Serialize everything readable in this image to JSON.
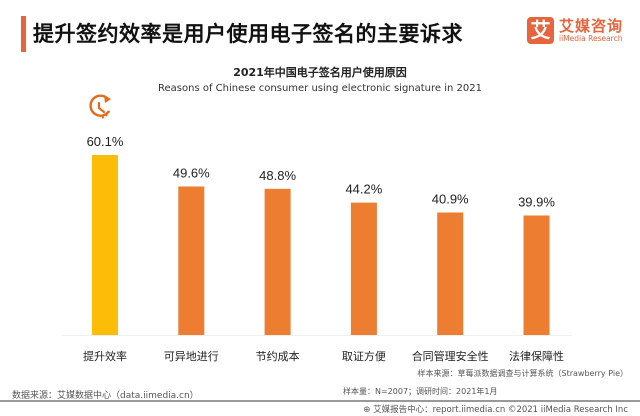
{
  "header": {
    "title": "提升签约效率是用户使用电子签名的主要诉求",
    "logo_mark": "艾",
    "logo_cn": "艾媒咨询",
    "logo_en": "iiMedia Research"
  },
  "chart_data": {
    "type": "bar",
    "title": "2021年中国电子签名用户使用原因",
    "subtitle": "Reasons of Chinese consumer using electronic signature in 2021",
    "categories": [
      "提升效率",
      "可异地进行",
      "节约成本",
      "取证方便",
      "合同管理安全性",
      "法律保障性"
    ],
    "values": [
      60.1,
      49.6,
      48.8,
      44.2,
      40.9,
      39.9
    ],
    "labels": [
      "60.1%",
      "49.6%",
      "48.8%",
      "44.2%",
      "40.9%",
      "39.9%"
    ],
    "unit": "%",
    "xlabel": "",
    "ylabel": "",
    "ylim": [
      0,
      60.1
    ],
    "grid": false,
    "legend": "none",
    "highlight_index": 0,
    "highlight_icon": "clock-icon",
    "colors": {
      "highlight": "#fbbd08",
      "default": "#ed7d31",
      "icon": "#e36c1c"
    }
  },
  "footer": {
    "source": "数据来源：艾媒数据中心（data.iimedia.cn）",
    "sample_source": "样本来源：草莓派数据调查与计算系统（Strawberry Pie）",
    "sample_size": "样本量：N=2007；调研时间：2021年1月",
    "copyright": "艾媒报告中心：report.iimedia.cn  ©2021  iiMedia Research  Inc"
  }
}
